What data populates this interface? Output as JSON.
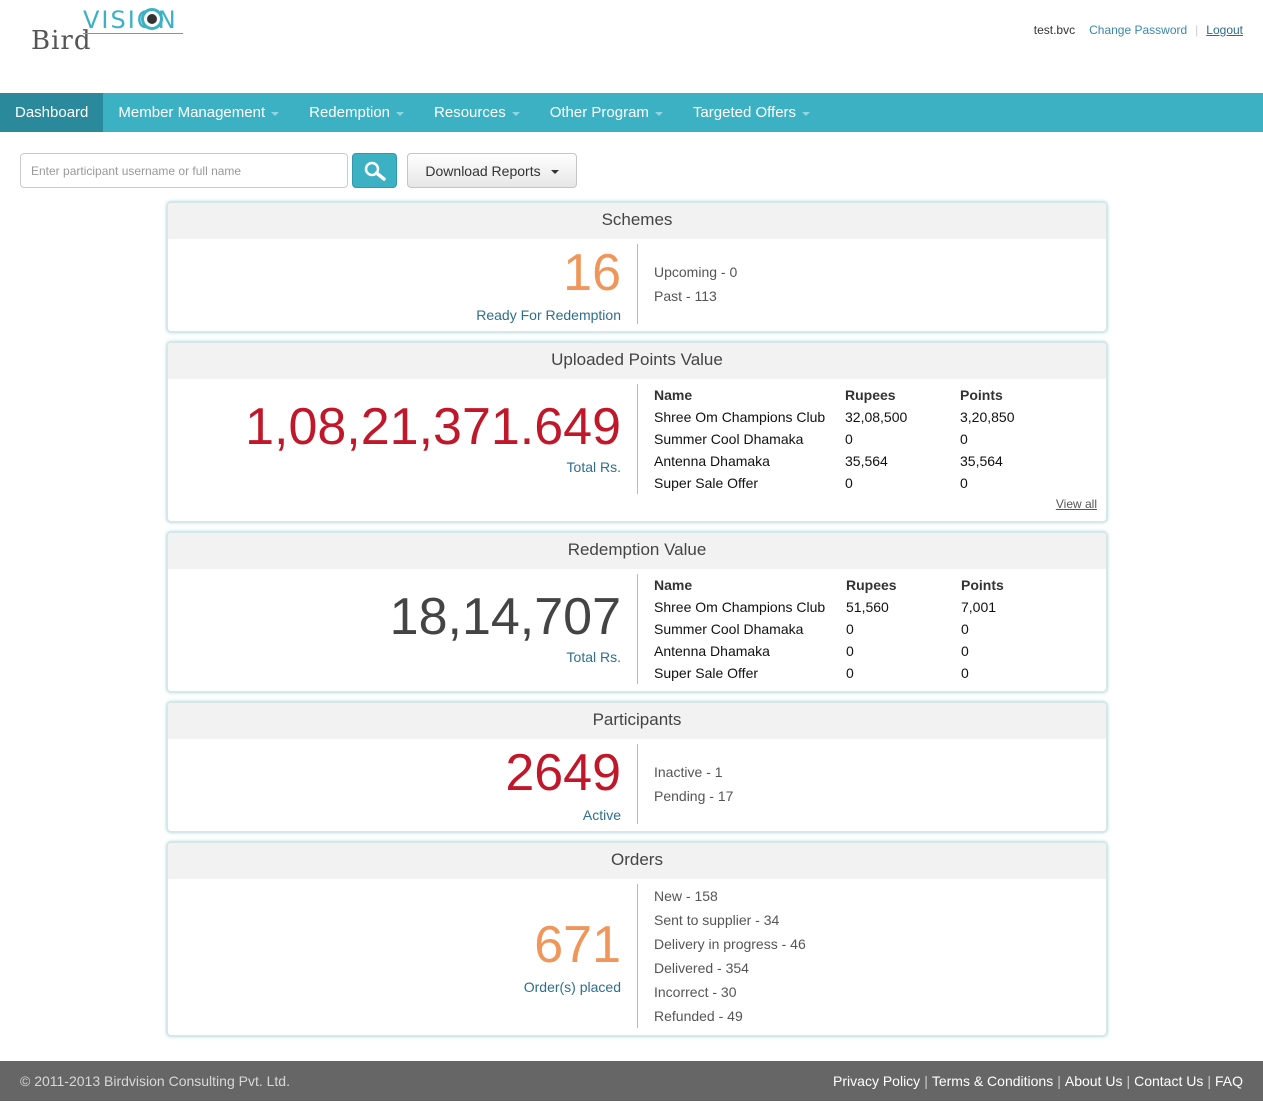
{
  "brand": {
    "word1": "Bird",
    "word2": "VISION"
  },
  "header": {
    "username": "test.bvc",
    "change_password": "Change Password",
    "logout": "Logout"
  },
  "nav": [
    {
      "label": "Dashboard",
      "active": true
    },
    {
      "label": "Member Management"
    },
    {
      "label": "Redemption"
    },
    {
      "label": "Resources"
    },
    {
      "label": "Other Program"
    },
    {
      "label": "Targeted Offers"
    }
  ],
  "search": {
    "placeholder": "Enter participant username or full name",
    "download_label": "Download Reports"
  },
  "schemes": {
    "title": "Schemes",
    "count": "16",
    "count_label": "Ready For Redemption",
    "stats": [
      "Upcoming - 0",
      "Past - 113"
    ]
  },
  "uploaded": {
    "title": "Uploaded Points Value",
    "total": "1,08,21,371.649",
    "total_label": "Total Rs.",
    "headers": [
      "Name",
      "Rupees",
      "Points"
    ],
    "rows": [
      [
        "Shree Om Champions Club",
        "32,08,500",
        "3,20,850"
      ],
      [
        "Summer Cool Dhamaka",
        "0",
        "0"
      ],
      [
        "Antenna Dhamaka",
        "35,564",
        "35,564"
      ],
      [
        "Super Sale Offer",
        "0",
        "0"
      ]
    ],
    "view_all": "View all"
  },
  "redemption": {
    "title": "Redemption Value",
    "total": "18,14,707",
    "total_label": "Total Rs.",
    "headers": [
      "Name",
      "Rupees",
      "Points"
    ],
    "rows": [
      [
        "Shree Om Champions Club",
        "51,560",
        "7,001"
      ],
      [
        "Summer Cool Dhamaka",
        "0",
        "0"
      ],
      [
        "Antenna Dhamaka",
        "0",
        "0"
      ],
      [
        "Super Sale Offer",
        "0",
        "0"
      ]
    ]
  },
  "participants": {
    "title": "Participants",
    "count": "2649",
    "count_label": "Active",
    "stats": [
      "Inactive - 1",
      "Pending - 17"
    ]
  },
  "orders": {
    "title": "Orders",
    "count": "671",
    "count_label": "Order(s) placed",
    "stats": [
      "New - 158",
      "Sent to supplier - 34",
      "Delivery in progress - 46",
      "Delivered - 354",
      "Incorrect - 30",
      "Refunded - 49"
    ]
  },
  "footer": {
    "copyright": "© 2011-2013 Birdvision Consulting Pvt. Ltd.",
    "links": [
      "Privacy Policy",
      "Terms & Conditions",
      "About Us",
      "Contact Us",
      "FAQ"
    ]
  },
  "colors": {
    "accent": "#3db1c4",
    "orange": "#f0965a",
    "red": "#c0182a",
    "footer": "#666666"
  }
}
